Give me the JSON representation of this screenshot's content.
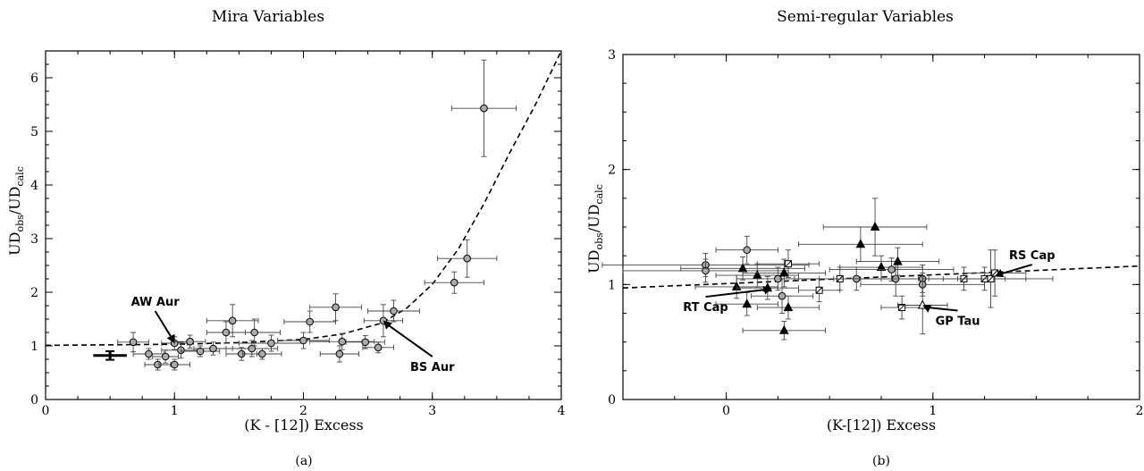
{
  "figure": {
    "panels": [
      {
        "title": "Mira Variables",
        "caption": "(a)",
        "xlabel": "(K - [12]) Excess",
        "ylabel_main": "UD",
        "ylabel_sub1": "obs",
        "ylabel_mid": "/UD",
        "ylabel_sub2": "calc",
        "annotations": [
          {
            "text": "AW Aur",
            "point": [
              1.0,
              1.05
            ],
            "label_at": [
              0.85,
              1.75
            ]
          },
          {
            "text": "BS Aur",
            "point": [
              2.62,
              1.47
            ],
            "label_at": [
              3.0,
              0.6
            ]
          }
        ]
      },
      {
        "title": "Semi-regular Variables",
        "caption": "(b)",
        "xlabel": "(K-[12]) Excess",
        "ylabel_main": "UD",
        "ylabel_sub1": "obs",
        "ylabel_mid": "/UD",
        "ylabel_sub2": "calc",
        "annotations": [
          {
            "text": "RS Cap",
            "point": [
              1.3,
              1.07
            ],
            "label_at": [
              1.48,
              1.22
            ]
          },
          {
            "text": "RT Cap",
            "point": [
              0.22,
              0.97
            ],
            "label_at": [
              -0.1,
              0.8
            ]
          },
          {
            "text": "GP Tau",
            "point": [
              0.95,
              0.82
            ],
            "label_at": [
              1.12,
              0.68
            ]
          }
        ]
      }
    ]
  },
  "chart_data": [
    {
      "type": "scatter",
      "title": "Mira Variables",
      "xlabel": "(K - [12]) Excess",
      "ylabel": "UD_obs/UD_calc",
      "xlim": [
        0,
        4
      ],
      "ylim": [
        0,
        6.5
      ],
      "xticks": [
        0,
        1,
        2,
        3,
        4
      ],
      "yticks": [
        0,
        1,
        2,
        3,
        4,
        5,
        6
      ],
      "grid": false,
      "fit_curve": {
        "style": "dashed",
        "points": [
          [
            0,
            1.01
          ],
          [
            0.5,
            1.02
          ],
          [
            1.0,
            1.03
          ],
          [
            1.5,
            1.06
          ],
          [
            2.0,
            1.12
          ],
          [
            2.3,
            1.22
          ],
          [
            2.6,
            1.42
          ],
          [
            2.8,
            1.7
          ],
          [
            3.0,
            2.15
          ],
          [
            3.2,
            2.8
          ],
          [
            3.4,
            3.65
          ],
          [
            3.6,
            4.6
          ],
          [
            3.8,
            5.5
          ],
          [
            4.0,
            6.5
          ]
        ]
      },
      "representative_error": {
        "x": 0.5,
        "y": 0.82,
        "xerr": 0.13,
        "yerr": 0.08
      },
      "points": [
        {
          "x": 0.68,
          "y": 1.07,
          "xe": 0.12,
          "ye": 0.18
        },
        {
          "x": 0.8,
          "y": 0.85,
          "xe": 0.12,
          "ye": 0.1
        },
        {
          "x": 0.87,
          "y": 0.65,
          "xe": 0.1,
          "ye": 0.1
        },
        {
          "x": 0.93,
          "y": 0.8,
          "xe": 0.1,
          "ye": 0.12
        },
        {
          "x": 1.0,
          "y": 0.65,
          "xe": 0.12,
          "ye": 0.1
        },
        {
          "x": 1.0,
          "y": 1.05,
          "xe": 0.1,
          "ye": 0.12
        },
        {
          "x": 1.05,
          "y": 0.92,
          "xe": 0.15,
          "ye": 0.15
        },
        {
          "x": 1.12,
          "y": 1.08,
          "xe": 0.12,
          "ye": 0.12
        },
        {
          "x": 1.2,
          "y": 0.9,
          "xe": 0.15,
          "ye": 0.1
        },
        {
          "x": 1.3,
          "y": 0.95,
          "xe": 0.15,
          "ye": 0.12
        },
        {
          "x": 1.4,
          "y": 1.25,
          "xe": 0.15,
          "ye": 0.2
        },
        {
          "x": 1.45,
          "y": 1.47,
          "xe": 0.2,
          "ye": 0.3
        },
        {
          "x": 1.52,
          "y": 0.85,
          "xe": 0.12,
          "ye": 0.12
        },
        {
          "x": 1.6,
          "y": 0.95,
          "xe": 0.2,
          "ye": 0.15
        },
        {
          "x": 1.62,
          "y": 1.25,
          "xe": 0.2,
          "ye": 0.25
        },
        {
          "x": 1.68,
          "y": 0.85,
          "xe": 0.15,
          "ye": 0.1
        },
        {
          "x": 1.75,
          "y": 1.05,
          "xe": 0.25,
          "ye": 0.15
        },
        {
          "x": 2.0,
          "y": 1.1,
          "xe": 0.2,
          "ye": 0.15
        },
        {
          "x": 2.05,
          "y": 1.45,
          "xe": 0.2,
          "ye": 0.2
        },
        {
          "x": 2.25,
          "y": 1.72,
          "xe": 0.2,
          "ye": 0.25
        },
        {
          "x": 2.28,
          "y": 0.85,
          "xe": 0.15,
          "ye": 0.15
        },
        {
          "x": 2.3,
          "y": 1.08,
          "xe": 0.25,
          "ye": 0.15
        },
        {
          "x": 2.48,
          "y": 1.07,
          "xe": 0.15,
          "ye": 0.12
        },
        {
          "x": 2.58,
          "y": 0.97,
          "xe": 0.12,
          "ye": 0.1
        },
        {
          "x": 2.62,
          "y": 1.47,
          "xe": 0.15,
          "ye": 0.3
        },
        {
          "x": 2.7,
          "y": 1.65,
          "xe": 0.2,
          "ye": 0.2
        },
        {
          "x": 3.17,
          "y": 2.18,
          "xe": 0.23,
          "ye": 0.2
        },
        {
          "x": 3.27,
          "y": 2.63,
          "xe": 0.23,
          "ye": 0.35
        },
        {
          "x": 3.4,
          "y": 5.43,
          "xe": 0.25,
          "ye": 0.9
        }
      ]
    },
    {
      "type": "scatter",
      "title": "Semi-regular Variables",
      "xlabel": "(K-[12]) Excess",
      "ylabel": "UD_obs/UD_calc",
      "xlim": [
        -0.5,
        2
      ],
      "ylim": [
        0,
        3
      ],
      "xticks": [
        0,
        1,
        2
      ],
      "yticks": [
        0,
        1,
        2,
        3
      ],
      "grid": false,
      "fit_curve": {
        "style": "dashed",
        "points": [
          [
            -0.5,
            0.97
          ],
          [
            2.0,
            1.16
          ]
        ]
      },
      "points": [
        {
          "x": -0.1,
          "y": 1.17,
          "xe": 0.5,
          "ye": 0.1,
          "m": "circle"
        },
        {
          "x": -0.1,
          "y": 1.12,
          "xe": 0.4,
          "ye": 0.1,
          "m": "circle"
        },
        {
          "x": 0.05,
          "y": 0.98,
          "xe": 0.2,
          "ye": 0.1,
          "m": "triangle"
        },
        {
          "x": 0.08,
          "y": 1.14,
          "xe": 0.3,
          "ye": 0.1,
          "m": "triangle"
        },
        {
          "x": 0.1,
          "y": 0.83,
          "xe": 0.15,
          "ye": 0.1,
          "m": "triangle"
        },
        {
          "x": 0.1,
          "y": 1.3,
          "xe": 0.15,
          "ye": 0.12,
          "m": "circle"
        },
        {
          "x": 0.15,
          "y": 1.08,
          "xe": 0.2,
          "ye": 0.1,
          "m": "triangle"
        },
        {
          "x": 0.2,
          "y": 0.97,
          "xe": 0.15,
          "ye": 0.1,
          "m": "triangle"
        },
        {
          "x": 0.25,
          "y": 1.05,
          "xe": 0.2,
          "ye": 0.1,
          "m": "circle"
        },
        {
          "x": 0.27,
          "y": 0.9,
          "xe": 0.15,
          "ye": 0.15,
          "m": "circle"
        },
        {
          "x": 0.28,
          "y": 1.1,
          "xe": 0.2,
          "ye": 0.12,
          "m": "triangle"
        },
        {
          "x": 0.28,
          "y": 0.6,
          "xe": 0.2,
          "ye": 0.08,
          "m": "triangle"
        },
        {
          "x": 0.3,
          "y": 0.8,
          "xe": 0.15,
          "ye": 0.1,
          "m": "triangle"
        },
        {
          "x": 0.3,
          "y": 1.18,
          "xe": 0.15,
          "ye": 0.12,
          "m": "square"
        },
        {
          "x": 0.45,
          "y": 0.95,
          "xe": 0.1,
          "ye": 0.1,
          "m": "square"
        },
        {
          "x": 0.55,
          "y": 1.05,
          "xe": 0.2,
          "ye": 0.1,
          "m": "square"
        },
        {
          "x": 0.63,
          "y": 1.05,
          "xe": 0.3,
          "ye": 0.1,
          "m": "circle"
        },
        {
          "x": 0.65,
          "y": 1.35,
          "xe": 0.3,
          "ye": 0.15,
          "m": "triangle"
        },
        {
          "x": 0.72,
          "y": 1.5,
          "xe": 0.25,
          "ye": 0.25,
          "m": "triangle"
        },
        {
          "x": 0.75,
          "y": 1.15,
          "xe": 0.2,
          "ye": 0.1,
          "m": "triangle"
        },
        {
          "x": 0.8,
          "y": 1.13,
          "xe": 0.3,
          "ye": 0.1,
          "m": "circle"
        },
        {
          "x": 0.82,
          "y": 1.05,
          "xe": 0.3,
          "ye": 0.15,
          "m": "circle"
        },
        {
          "x": 0.83,
          "y": 1.2,
          "xe": 0.2,
          "ye": 0.12,
          "m": "triangle"
        },
        {
          "x": 0.85,
          "y": 0.8,
          "xe": 0.1,
          "ye": 0.1,
          "m": "square"
        },
        {
          "x": 0.95,
          "y": 1.05,
          "xe": 0.3,
          "ye": 0.12,
          "m": "circle"
        },
        {
          "x": 0.95,
          "y": 1.0,
          "xe": 0.3,
          "ye": 0.1,
          "m": "circle"
        },
        {
          "x": 0.95,
          "y": 0.82,
          "xe": 0.12,
          "ye": 0.25,
          "m": "triangle-open"
        },
        {
          "x": 1.15,
          "y": 1.05,
          "xe": 0.2,
          "ye": 0.1,
          "m": "square"
        },
        {
          "x": 1.25,
          "y": 1.05,
          "xe": 0.2,
          "ye": 0.1,
          "m": "square"
        },
        {
          "x": 1.28,
          "y": 1.05,
          "xe": 0.3,
          "ye": 0.25,
          "m": "square"
        },
        {
          "x": 1.3,
          "y": 1.1,
          "xe": 0.15,
          "ye": 0.2,
          "m": "square"
        }
      ]
    }
  ]
}
